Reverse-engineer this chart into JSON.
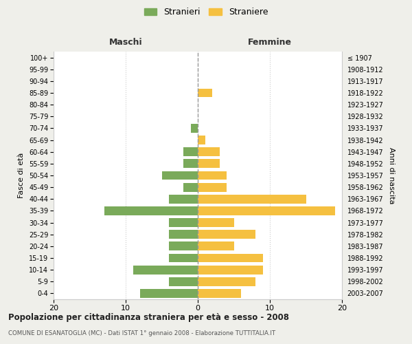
{
  "age_groups": [
    "0-4",
    "5-9",
    "10-14",
    "15-19",
    "20-24",
    "25-29",
    "30-34",
    "35-39",
    "40-44",
    "45-49",
    "50-54",
    "55-59",
    "60-64",
    "65-69",
    "70-74",
    "75-79",
    "80-84",
    "85-89",
    "90-94",
    "95-99",
    "100+"
  ],
  "birth_years": [
    "2003-2007",
    "1998-2002",
    "1993-1997",
    "1988-1992",
    "1983-1987",
    "1978-1982",
    "1973-1977",
    "1968-1972",
    "1963-1967",
    "1958-1962",
    "1953-1957",
    "1948-1952",
    "1943-1947",
    "1938-1942",
    "1933-1937",
    "1928-1932",
    "1923-1927",
    "1918-1922",
    "1913-1917",
    "1908-1912",
    "≤ 1907"
  ],
  "maschi": [
    8,
    4,
    9,
    4,
    4,
    4,
    4,
    13,
    4,
    2,
    5,
    2,
    2,
    0,
    1,
    0,
    0,
    0,
    0,
    0,
    0
  ],
  "femmine": [
    6,
    8,
    9,
    9,
    5,
    8,
    5,
    19,
    15,
    4,
    4,
    3,
    3,
    1,
    0,
    0,
    0,
    2,
    0,
    0,
    0
  ],
  "color_maschi": "#7aaa5a",
  "color_femmine": "#f5c040",
  "xlim": 20,
  "title": "Popolazione per cittadinanza straniera per età e sesso - 2008",
  "subtitle": "COMUNE DI ESANATOGLIA (MC) - Dati ISTAT 1° gennaio 2008 - Elaborazione TUTTITALIA.IT",
  "label_maschi": "Stranieri",
  "label_femmine": "Straniere",
  "ylabel_left": "Fasce di età",
  "ylabel_right": "Anni di nascita",
  "xlabel_left": "Maschi",
  "xlabel_right": "Femmine",
  "bg_color": "#efefea",
  "plot_bg": "#ffffff",
  "grid_color": "#cccccc"
}
